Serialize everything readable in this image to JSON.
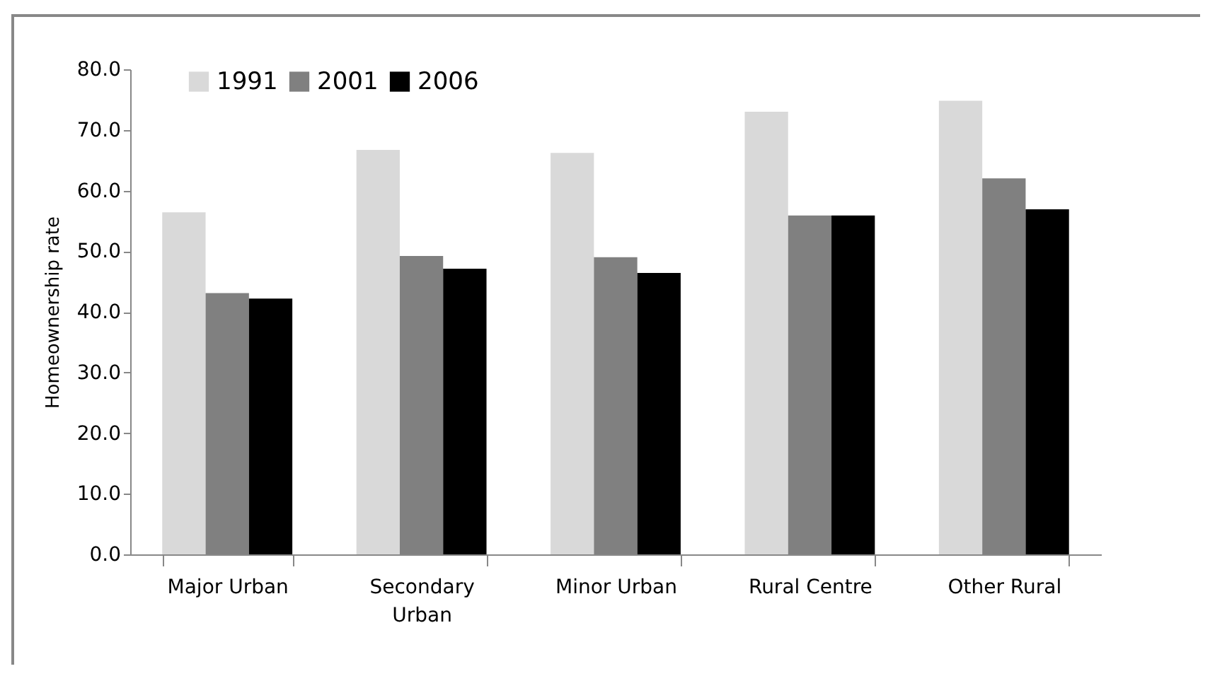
{
  "chart_data": {
    "type": "bar",
    "ylabel": "Homeownership rate",
    "categories": [
      "Major Urban",
      "Secondary Urban",
      "Minor Urban",
      "Rural Centre",
      "Other Rural"
    ],
    "series": [
      {
        "name": "1991",
        "color": "#d9d9d9",
        "values": [
          56.4,
          66.7,
          66.2,
          73.0,
          74.8
        ]
      },
      {
        "name": "2001",
        "color": "#808080",
        "values": [
          43.1,
          49.2,
          49.0,
          55.9,
          62.0
        ]
      },
      {
        "name": "2006",
        "color": "#000000",
        "values": [
          42.2,
          47.1,
          46.4,
          55.9,
          56.9
        ]
      }
    ],
    "ylim": [
      0,
      80
    ],
    "yticks": [
      {
        "value": 0,
        "label": "0.0"
      },
      {
        "value": 10,
        "label": "10.0"
      },
      {
        "value": 20,
        "label": "20.0"
      },
      {
        "value": 30,
        "label": "30.0"
      },
      {
        "value": 40,
        "label": "40.0"
      },
      {
        "value": 50,
        "label": "50.0"
      },
      {
        "value": 60,
        "label": "60.0"
      },
      {
        "value": 70,
        "label": "70.0"
      },
      {
        "value": 80,
        "label": "80.0"
      }
    ],
    "grid": false,
    "legend": "top left"
  }
}
